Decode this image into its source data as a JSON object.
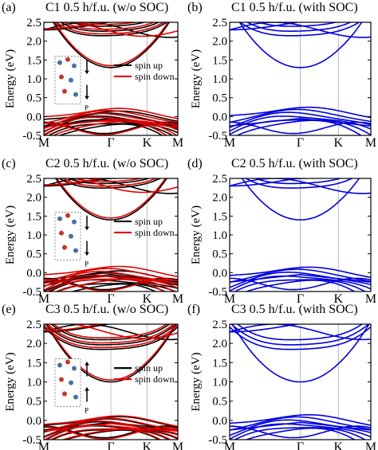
{
  "figure_type": "band-structure-grid",
  "chart_data": [
    {
      "type": "line",
      "panel_label": "(a)",
      "title": "C1  0.5 h/f.u. (w/o SOC)",
      "ylabel": "Energy (eV)",
      "ylim": [
        -0.5,
        2.5
      ],
      "yticks": [
        "-0.5",
        "0.0",
        "0.5",
        "1.0",
        "1.5",
        "2.0",
        "2.5"
      ],
      "xticks": [
        "M",
        "Γ",
        "K",
        "M"
      ],
      "xtick_positions": [
        0,
        0.5,
        0.77,
        1.0
      ],
      "legend": [
        "spin up",
        "spin down"
      ],
      "legend_placement": "center-right",
      "inset": "crystal-structure",
      "arrows": [
        "down",
        "down"
      ],
      "arrow_label": "P",
      "series": [
        {
          "name": "spin up",
          "color": "#000000",
          "cb_min": 1.3,
          "cb_top": 2.5,
          "vb_top": 0.1
        },
        {
          "name": "spin down",
          "color": "#e00000",
          "cb_min": 1.32,
          "cb_top": 2.5,
          "vb_top": 0.2
        }
      ]
    },
    {
      "type": "line",
      "panel_label": "(b)",
      "title": "C1  0.5 h/f.u. (with SOC)",
      "ylabel": "Energy (eV)",
      "ylim": [
        -0.5,
        2.5
      ],
      "yticks": [
        "-0.5",
        "0.0",
        "0.5",
        "1.0",
        "1.5",
        "2.0",
        "2.5"
      ],
      "xticks": [
        "M",
        "Γ",
        "K",
        "M"
      ],
      "xtick_positions": [
        0,
        0.5,
        0.77,
        1.0
      ],
      "series": [
        {
          "name": "",
          "color": "#0000dd",
          "cb_min": 1.3,
          "cb_top": 2.5,
          "vb_top": 0.2
        }
      ]
    },
    {
      "type": "line",
      "panel_label": "(c)",
      "title": "C2  0.5 h/f.u. (w/o SOC)",
      "ylabel": "Energy (eV)",
      "ylim": [
        -0.5,
        2.5
      ],
      "yticks": [
        "-0.5",
        "0.0",
        "0.5",
        "1.0",
        "1.5",
        "2.0",
        "2.5"
      ],
      "xticks": [
        "M",
        "Γ",
        "K",
        "M"
      ],
      "xtick_positions": [
        0,
        0.5,
        0.77,
        1.0
      ],
      "legend": [
        "spin up",
        "spin down"
      ],
      "legend_placement": "center-right",
      "inset": "crystal-structure",
      "arrows": [
        "down",
        "down"
      ],
      "arrow_label": "P",
      "series": [
        {
          "name": "spin up",
          "color": "#000000",
          "cb_min": 1.4,
          "cb_top": 2.5,
          "vb_top": 0.0
        },
        {
          "name": "spin down",
          "color": "#e00000",
          "cb_min": 1.42,
          "cb_top": 2.5,
          "vb_top": 0.15
        }
      ]
    },
    {
      "type": "line",
      "panel_label": "(d)",
      "title": "C2  0.5 h/f.u. (with SOC)",
      "ylabel": "Energy (eV)",
      "ylim": [
        -0.5,
        2.5
      ],
      "yticks": [
        "-0.5",
        "0.0",
        "0.5",
        "1.0",
        "1.5",
        "2.0",
        "2.5"
      ],
      "xticks": [
        "M",
        "Γ",
        "K",
        "M"
      ],
      "xtick_positions": [
        0,
        0.5,
        0.77,
        1.0
      ],
      "series": [
        {
          "name": "",
          "color": "#0000dd",
          "cb_min": 1.4,
          "cb_top": 2.5,
          "vb_top": 0.1
        }
      ]
    },
    {
      "type": "line",
      "panel_label": "(e)",
      "title": "C3  0.5 h/f.u. (w/o SOC)",
      "ylabel": "Energy (eV)",
      "ylim": [
        -0.5,
        2.5
      ],
      "yticks": [
        "-0.5",
        "0.0",
        "0.5",
        "1.0",
        "1.5",
        "2.0",
        "2.5"
      ],
      "xticks": [
        "M",
        "Γ",
        "K",
        "M"
      ],
      "xtick_positions": [
        0,
        0.5,
        0.77,
        1.0
      ],
      "legend": [
        "spin up",
        "spin down"
      ],
      "legend_placement": "center-right",
      "inset": "crystal-structure",
      "arrows": [
        "up",
        "up"
      ],
      "arrow_label": "P",
      "series": [
        {
          "name": "spin up",
          "color": "#000000",
          "cb_min": 1.0,
          "cb_top": 2.5,
          "vb_top": 0.05
        },
        {
          "name": "spin down",
          "color": "#e00000",
          "cb_min": 1.02,
          "cb_top": 2.5,
          "vb_top": 0.1
        }
      ]
    },
    {
      "type": "line",
      "panel_label": "(f)",
      "title": "C3  0.5 h/f.u. (with SOC)",
      "ylabel": "Energy (eV)",
      "ylim": [
        -0.5,
        2.5
      ],
      "yticks": [
        "-0.5",
        "0.0",
        "0.5",
        "1.0",
        "1.5",
        "2.0",
        "2.5"
      ],
      "xticks": [
        "M",
        "Γ",
        "K",
        "M"
      ],
      "xtick_positions": [
        0,
        0.5,
        0.77,
        1.0
      ],
      "series": [
        {
          "name": "",
          "color": "#0000dd",
          "cb_min": 1.0,
          "cb_top": 2.5,
          "vb_top": 0.1
        }
      ]
    }
  ]
}
